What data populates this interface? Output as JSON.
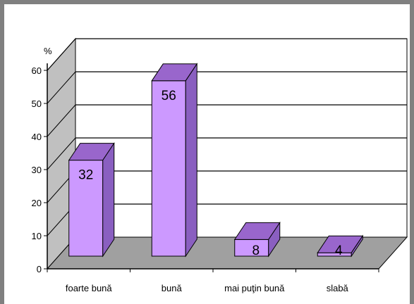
{
  "chart_data": {
    "type": "bar",
    "categories": [
      "foarte bună",
      "bună",
      "mai puţin bună",
      "slabă"
    ],
    "values": [
      32,
      56,
      8,
      4
    ],
    "data_labels": [
      "32",
      "56",
      "8",
      "4"
    ],
    "title": "",
    "xlabel": "",
    "ylabel": "%",
    "ylim": [
      0,
      60
    ],
    "yticks": [
      "0",
      "10",
      "20",
      "30",
      "40",
      "50",
      "60"
    ],
    "grid": true,
    "style": "3d-column",
    "colors": {
      "bar_front": "#cc99ff",
      "bar_top": "#9966cc",
      "bar_side": "#8a5fc0",
      "back_wall": "#ffffff",
      "side_wall": "#c0c0c0",
      "floor": "#a0a0a0",
      "frame": "#808080"
    }
  }
}
